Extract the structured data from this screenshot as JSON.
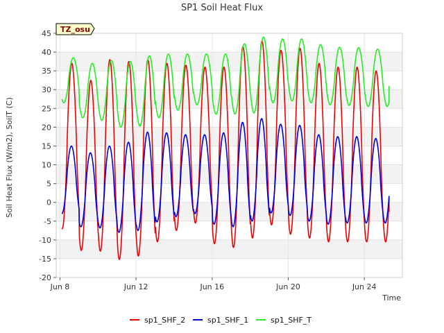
{
  "chart_data": {
    "type": "line",
    "title": "SP1 Soil Heat Flux",
    "xlabel": "Time",
    "ylabel": "Soil Heat Flux (W/m2), SoilT (C)",
    "badge": "TZ_osu",
    "ylim": [
      -20,
      45
    ],
    "yticks": [
      -20,
      -15,
      -10,
      -5,
      0,
      5,
      10,
      15,
      20,
      25,
      30,
      35,
      40,
      45
    ],
    "xlim": [
      7.8,
      26.0
    ],
    "x_unit": "day of June",
    "xticks": [
      {
        "value": 8,
        "label": "Jun 8"
      },
      {
        "value": 12,
        "label": "Jun 12"
      },
      {
        "value": 16,
        "label": "Jun 16"
      },
      {
        "value": 20,
        "label": "Jun 20"
      },
      {
        "value": 24,
        "label": "Jun 24"
      }
    ],
    "grid": "horizontal bands",
    "legend_position": "bottom",
    "series": [
      {
        "name": "sp1_SHF_2",
        "color": "#ee0000",
        "start": 8.1,
        "end": 25.3,
        "peak_hour_fraction": 0.62,
        "daily_max": [
          37.0,
          32.5,
          38.0,
          37.5,
          38.0,
          37.0,
          36.5,
          36.0,
          36.0,
          41.5,
          43.0,
          40.5,
          41.0,
          37.0,
          36.0,
          36.0,
          35.0
        ],
        "daily_min": [
          -7.0,
          -12.8,
          -13.0,
          -15.2,
          -14.3,
          -10.5,
          -7.5,
          -5.5,
          -11.0,
          -12.0,
          -9.5,
          -6.0,
          -8.5,
          -9.5,
          -10.5,
          -10.5,
          -10.5
        ],
        "final_value": -2.5
      },
      {
        "name": "sp1_SHF_1",
        "color": "#0000dd",
        "start": 8.1,
        "end": 25.3,
        "peak_hour_fraction": 0.6,
        "daily_max": [
          15.0,
          13.2,
          15.0,
          16.0,
          18.7,
          18.5,
          18.0,
          18.0,
          18.5,
          21.3,
          22.3,
          20.8,
          20.5,
          18.0,
          17.5,
          17.5,
          17.0
        ],
        "daily_min": [
          -3.0,
          -6.5,
          -6.8,
          -8.0,
          -7.5,
          -5.2,
          -3.8,
          -3.0,
          -5.8,
          -6.5,
          -5.0,
          -2.8,
          -3.5,
          -5.0,
          -5.8,
          -5.5,
          -5.5
        ],
        "final_value": 0.5
      },
      {
        "name": "sp1_SHF_T",
        "color": "#22ee22",
        "start": 8.1,
        "end": 25.3,
        "peak_hour_fraction": 0.7,
        "daily_max": [
          38.5,
          37.0,
          37.8,
          37.5,
          39.0,
          39.5,
          39.5,
          39.5,
          39.5,
          42.2,
          44.0,
          43.5,
          43.5,
          42.0,
          41.3,
          41.2,
          40.8
        ],
        "daily_min": [
          26.5,
          22.5,
          21.8,
          20.0,
          20.3,
          22.5,
          24.5,
          26.0,
          23.5,
          23.5,
          23.8,
          26.5,
          27.0,
          26.5,
          26.0,
          25.8,
          25.5
        ],
        "final_value": 31.0
      }
    ]
  }
}
